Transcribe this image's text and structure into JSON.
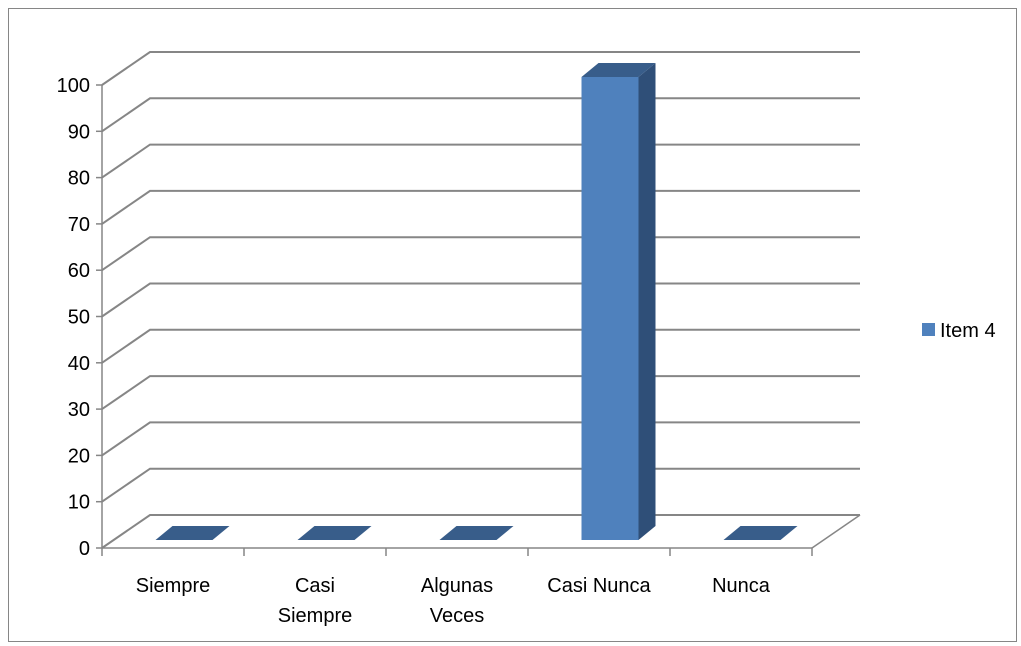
{
  "colors": {
    "bar_front": "#4f81bd",
    "bar_top": "#385d8a",
    "bar_side": "#2f4f78",
    "grid": "#868686",
    "axis": "#868686"
  },
  "chart_data": {
    "type": "bar",
    "categories": [
      "Siempre",
      "Casi Siempre",
      "Algunas Veces",
      "Casi Nunca",
      "Nunca"
    ],
    "category_lines": [
      [
        "Siempre"
      ],
      [
        "Casi",
        "Siempre"
      ],
      [
        "Algunas",
        "Veces"
      ],
      [
        "Casi Nunca"
      ],
      [
        "Nunca"
      ]
    ],
    "series": [
      {
        "name": "Item 4",
        "values": [
          0,
          0,
          0,
          100,
          0
        ]
      }
    ],
    "ylim": [
      0,
      100
    ],
    "yticks": [
      0,
      10,
      20,
      30,
      40,
      50,
      60,
      70,
      80,
      90,
      100
    ],
    "title": "",
    "xlabel": "",
    "ylabel": "",
    "grid": true,
    "legend_position": "right",
    "three_d": true
  }
}
